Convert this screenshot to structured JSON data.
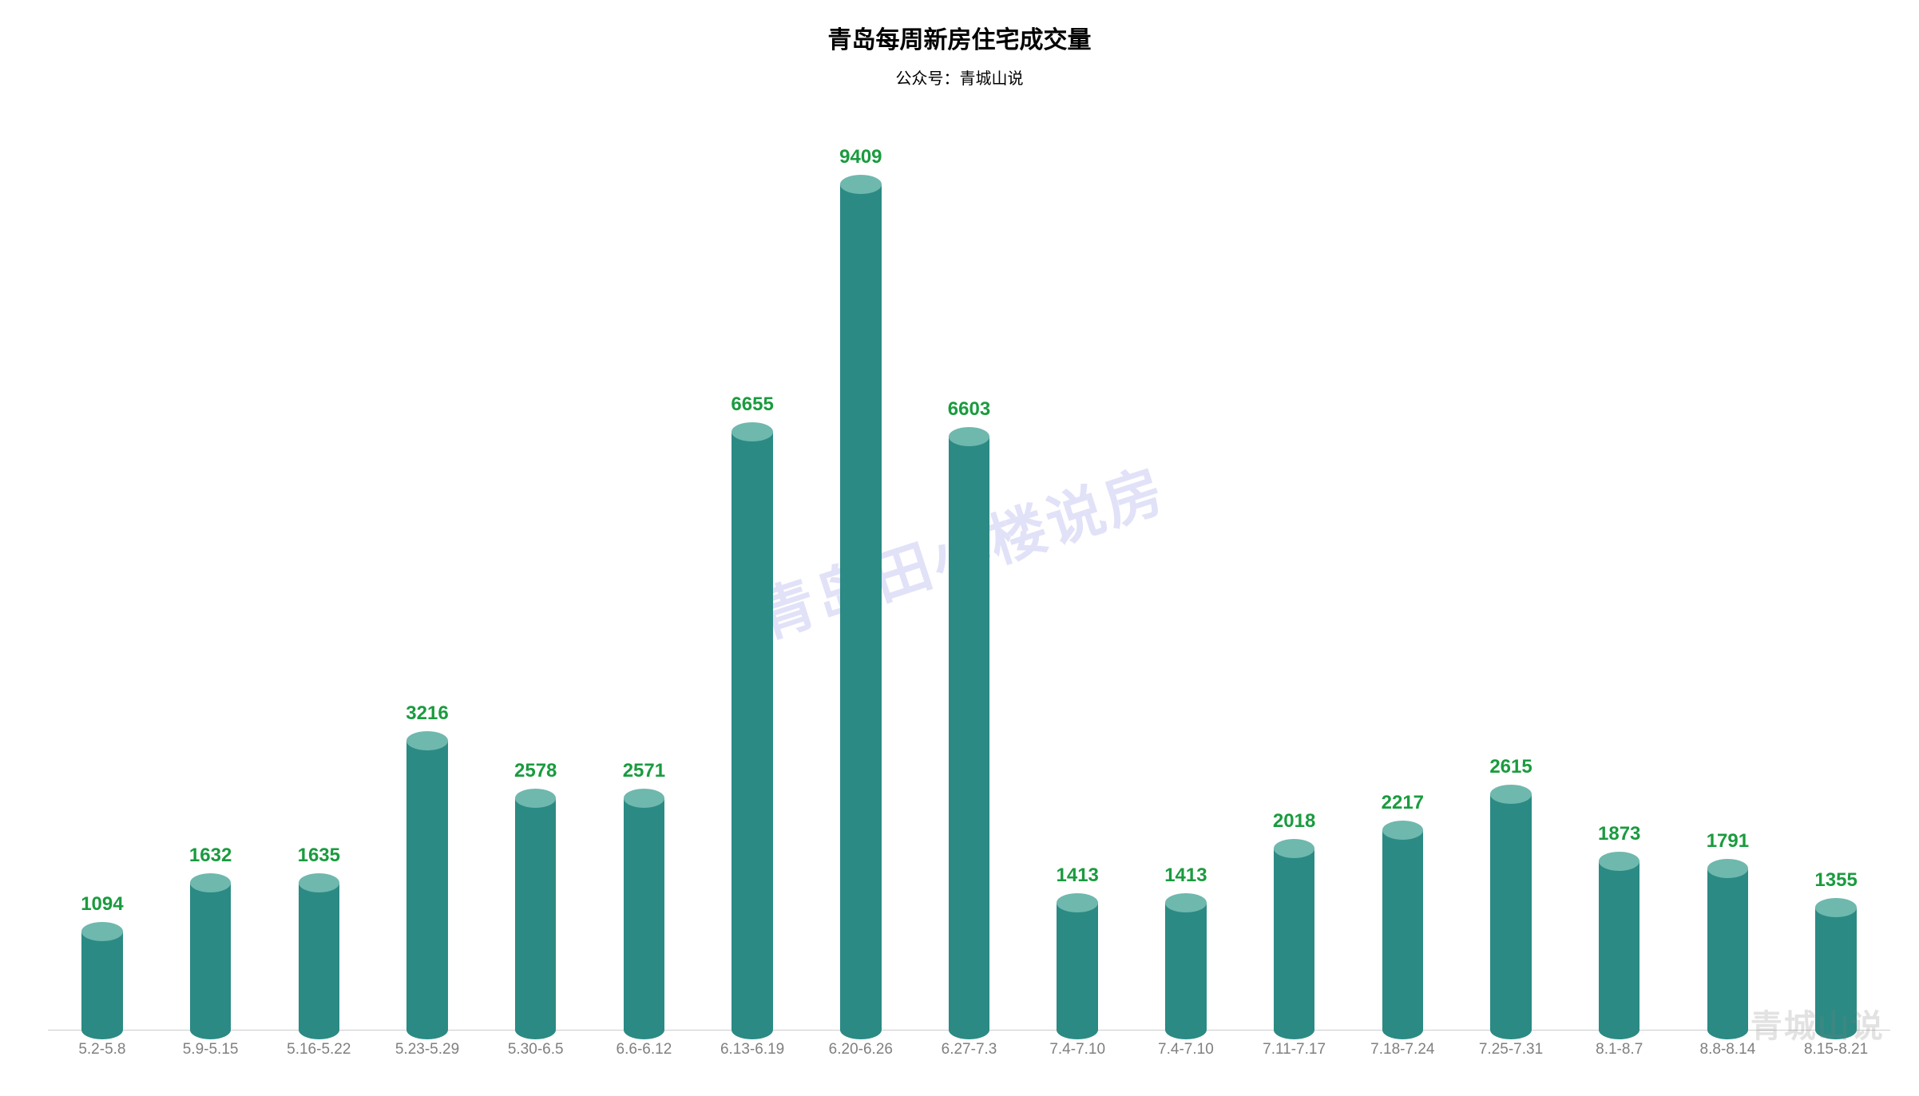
{
  "chart": {
    "type": "bar",
    "title": "青岛每周新房住宅成交量",
    "title_fontsize": 30,
    "title_color": "#000000",
    "subtitle": "公众号：青城山说",
    "subtitle_fontsize": 20,
    "subtitle_color": "#000000",
    "background_color": "#ffffff",
    "axis_line_color": "#cccccc",
    "bar_body_color": "#2b8a84",
    "bar_top_color": "#6fb8ad",
    "data_label_color": "#1a9b3f",
    "data_label_fontsize": 24,
    "x_label_color": "#808080",
    "x_label_fontsize": 19,
    "ylim": [
      0,
      10000
    ],
    "bar_width_ratio": 0.38,
    "categories": [
      "5.2-5.8",
      "5.9-5.15",
      "5.16-5.22",
      "5.23-5.29",
      "5.30-6.5",
      "6.6-6.12",
      "6.13-6.19",
      "6.20-6.26",
      "6.27-7.3",
      "7.4-7.10",
      "7.4-7.10",
      "7.11-7.17",
      "7.18-7.24",
      "7.25-7.31",
      "8.1-8.7",
      "8.8-8.14",
      "8.15-8.21"
    ],
    "values": [
      1094,
      1632,
      1635,
      3216,
      2578,
      2571,
      6655,
      9409,
      6603,
      1413,
      1413,
      2018,
      2217,
      2615,
      1873,
      1791,
      1355
    ]
  },
  "watermark": {
    "center_text": "青岛田小楼说房",
    "center_color": "#8a8ae6",
    "center_fontsize": 72,
    "corner_text": "青城山说",
    "corner_color": "#808080",
    "corner_fontsize": 40
  }
}
